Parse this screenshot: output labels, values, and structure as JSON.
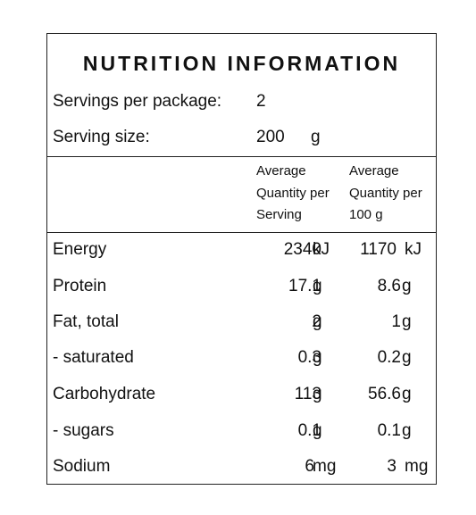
{
  "title": "NUTRITION INFORMATION",
  "servings_per_package": {
    "label": "Servings per package:",
    "value": "2"
  },
  "serving_size": {
    "label": "Serving size:",
    "value": "200",
    "unit": "g"
  },
  "column_headers": {
    "per_serving": [
      "Average",
      "Quantity per",
      "Serving"
    ],
    "per_100g": [
      "Average",
      "Quantity per",
      "100 g"
    ]
  },
  "nutrients": [
    {
      "name": "Energy",
      "per_serving": "2340",
      "per_serving_unit": "kJ",
      "per_100g": "1170",
      "per_100g_unit": "kJ"
    },
    {
      "name": "Protein",
      "per_serving": "17.1",
      "per_serving_unit": "g",
      "per_100g": "8.6",
      "per_100g_unit": "g"
    },
    {
      "name": "Fat, total",
      "per_serving": "2",
      "per_serving_unit": "g",
      "per_100g": "1",
      "per_100g_unit": "g"
    },
    {
      "name": "- saturated",
      "per_serving": "0.3",
      "per_serving_unit": "g",
      "per_100g": "0.2",
      "per_100g_unit": "g"
    },
    {
      "name": "Carbohydrate",
      "per_serving": "113",
      "per_serving_unit": "g",
      "per_100g": "56.6",
      "per_100g_unit": "g"
    },
    {
      "name": "- sugars",
      "per_serving": "0.1",
      "per_serving_unit": "g",
      "per_100g": "0.1",
      "per_100g_unit": "g"
    },
    {
      "name": "Sodium",
      "per_serving": "6",
      "per_serving_unit": "mg",
      "per_100g": "3",
      "per_100g_unit": "mg"
    }
  ]
}
